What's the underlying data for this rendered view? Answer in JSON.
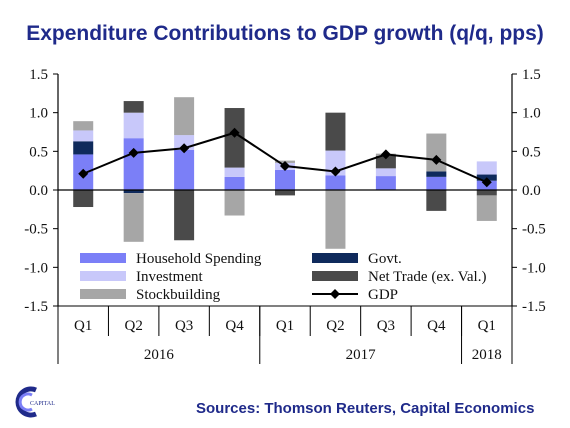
{
  "title": "Expenditure Contributions to GDP growth (q/q, pps)",
  "source": "Sources: Thomson Reuters, Capital Economics",
  "logo_text": "CAPITAL",
  "colors": {
    "household": "#7b7ff7",
    "investment": "#c8c8fa",
    "stock": "#a6a6a6",
    "govt": "#0f2a5c",
    "net_trade": "#4a4a4a",
    "gdp": "#000000",
    "title": "#1f2a8a"
  },
  "chart_data": {
    "type": "bar",
    "stacked": true,
    "categories": [
      "Q1",
      "Q2",
      "Q3",
      "Q4",
      "Q1",
      "Q2",
      "Q3",
      "Q4",
      "Q1"
    ],
    "years": [
      {
        "label": "2016",
        "span": 4
      },
      {
        "label": "2017",
        "span": 4
      },
      {
        "label": "2018",
        "span": 1
      }
    ],
    "ylim": [
      -1.5,
      1.5
    ],
    "yticks": [
      "1.5",
      "1.0",
      "0.5",
      "0.0",
      "-0.5",
      "-1.0",
      "-1.5"
    ],
    "legend_placement": "bottom-left-inside",
    "series": [
      {
        "key": "household",
        "name": "Household Spending",
        "values": [
          0.46,
          0.67,
          0.52,
          0.17,
          0.26,
          0.19,
          0.18,
          0.17,
          0.12
        ]
      },
      {
        "key": "govt",
        "name": "Govt.",
        "values": [
          0.17,
          -0.04,
          0.0,
          0.0,
          0.0,
          0.0,
          0.0,
          0.07,
          0.08
        ]
      },
      {
        "key": "investment",
        "name": "Investment",
        "values": [
          0.14,
          0.33,
          0.19,
          0.12,
          0.09,
          0.32,
          0.1,
          0.0,
          0.17
        ]
      },
      {
        "key": "net_trade",
        "name": "Net Trade (ex. Val.)",
        "values": [
          -0.22,
          0.15,
          -0.65,
          0.77,
          -0.07,
          0.49,
          0.16,
          -0.27,
          -0.07
        ]
      },
      {
        "key": "stock",
        "name": "Stockbuilding",
        "values": [
          0.12,
          -0.63,
          0.49,
          -0.33,
          0.03,
          -0.76,
          0.03,
          0.49,
          -0.33
        ]
      }
    ],
    "line": {
      "key": "gdp",
      "name": "GDP",
      "values": [
        0.21,
        0.48,
        0.54,
        0.74,
        0.31,
        0.24,
        0.46,
        0.39,
        0.1
      ]
    }
  }
}
